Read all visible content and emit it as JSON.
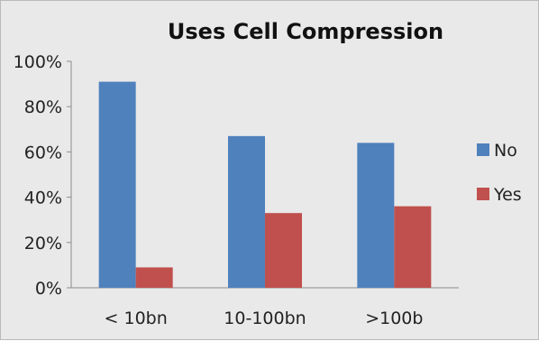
{
  "chart_data": {
    "type": "bar",
    "title": "Uses Cell Compression",
    "categories": [
      "< 10bn",
      "10-100bn",
      ">100b"
    ],
    "series": [
      {
        "name": "No",
        "values": [
          91,
          67,
          64
        ],
        "color": "#4f81bd"
      },
      {
        "name": "Yes",
        "values": [
          9,
          33,
          36
        ],
        "color": "#c0504d"
      }
    ],
    "ylim": [
      0,
      100
    ],
    "yticks": [
      "0%",
      "20%",
      "40%",
      "60%",
      "80%",
      "100%"
    ],
    "grid": false,
    "legend_position": "right"
  }
}
